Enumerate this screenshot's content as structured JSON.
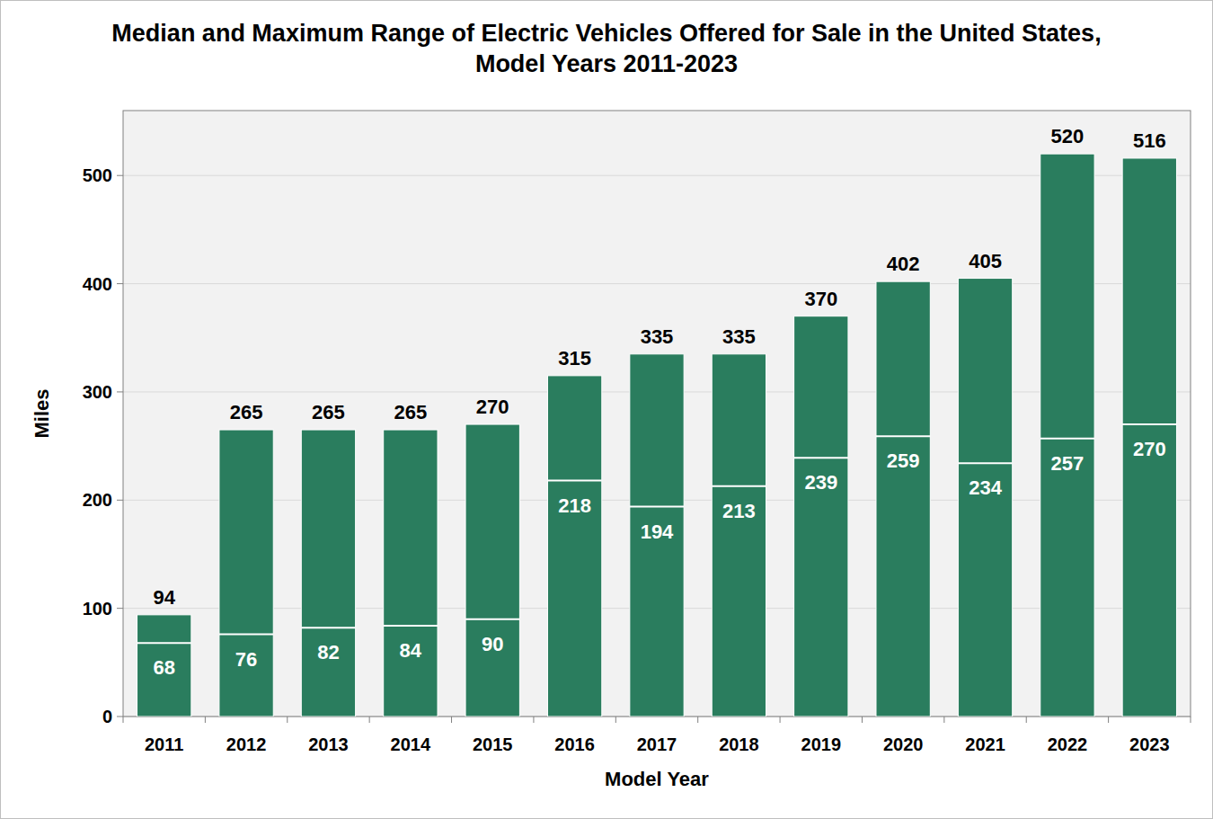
{
  "chart_data": {
    "type": "bar",
    "title": "Median and Maximum Range of Electric Vehicles Offered for Sale in the United States, Model Years 2011-2023",
    "x_label": "Model Year",
    "y_label": "Miles",
    "categories": [
      "2011",
      "2012",
      "2013",
      "2014",
      "2015",
      "2016",
      "2017",
      "2018",
      "2019",
      "2020",
      "2021",
      "2022",
      "2023"
    ],
    "series": [
      {
        "color": "#2a7d5e",
        "values": [
          68,
          76,
          82,
          84,
          90,
          218,
          194,
          213,
          239,
          259,
          234,
          257,
          270
        ]
      },
      {
        "color": "#2a7d5e",
        "values": [
          94,
          265,
          265,
          265,
          270,
          315,
          335,
          335,
          370,
          402,
          405,
          520,
          516
        ]
      }
    ],
    "stacked": false,
    "data_labels": true,
    "ylim": [
      0,
      560
    ],
    "yticks": [
      0,
      100,
      200,
      300,
      400,
      500
    ],
    "grid": true
  }
}
